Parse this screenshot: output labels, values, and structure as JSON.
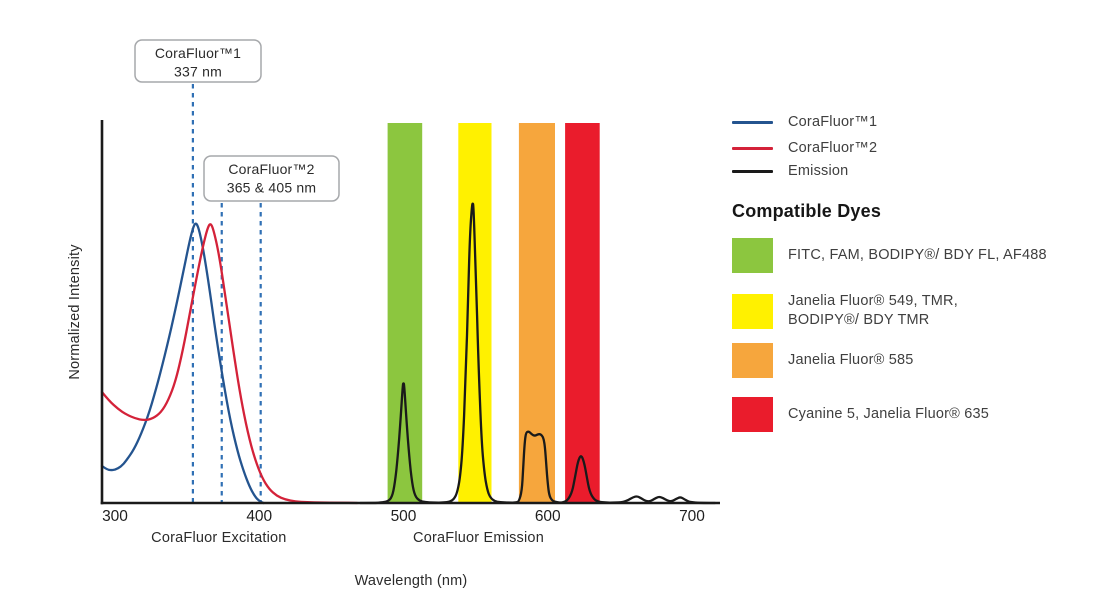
{
  "chart_data": {
    "type": "line",
    "title": "",
    "xlabel": "Wavelength (nm)",
    "ylabel": "Normalized Intensity",
    "xlim": [
      291,
      719
    ],
    "ylim": [
      0,
      1
    ],
    "grid": false,
    "legend_position": "right",
    "x_ticks": [
      300,
      400,
      500,
      600,
      700
    ],
    "axis_sublabels": [
      {
        "text": "CoraFluor Excitation",
        "x_nm": 372
      },
      {
        "text": "CoraFluor Emission",
        "x_nm": 552
      }
    ],
    "annotations": [
      {
        "lines": [
          "CoraFluor™1",
          "337 nm"
        ]
      },
      {
        "lines": [
          "CoraFluor™2",
          "365 & 405 nm"
        ]
      }
    ],
    "excitation_markers_nm": [
      354,
      374,
      401
    ],
    "marker_color": "#3070B5",
    "bands": [
      {
        "id": "green",
        "nm": [
          489,
          513
        ],
        "color": "#8CC63F"
      },
      {
        "id": "yellow",
        "nm": [
          538,
          561
        ],
        "color": "#FFF100"
      },
      {
        "id": "orange",
        "nm": [
          580,
          605
        ],
        "color": "#F6A63D"
      },
      {
        "id": "red",
        "nm": [
          612,
          636
        ],
        "color": "#EA1C2C"
      }
    ],
    "series": [
      {
        "name": "CoraFluor™1",
        "color": "#24548F",
        "points": [
          [
            291,
            0.097
          ],
          [
            294,
            0.089
          ],
          [
            297,
            0.086
          ],
          [
            300,
            0.087
          ],
          [
            304,
            0.095
          ],
          [
            308,
            0.112
          ],
          [
            313,
            0.14
          ],
          [
            318,
            0.18
          ],
          [
            324,
            0.24
          ],
          [
            330,
            0.32
          ],
          [
            336,
            0.41
          ],
          [
            342,
            0.51
          ],
          [
            347,
            0.6
          ],
          [
            351,
            0.675
          ],
          [
            354,
            0.722
          ],
          [
            356,
            0.737
          ],
          [
            358,
            0.722
          ],
          [
            361,
            0.67
          ],
          [
            365,
            0.575
          ],
          [
            370,
            0.44
          ],
          [
            375,
            0.32
          ],
          [
            380,
            0.215
          ],
          [
            385,
            0.135
          ],
          [
            389,
            0.085
          ],
          [
            393,
            0.045
          ],
          [
            397,
            0.017
          ],
          [
            400,
            0.005
          ],
          [
            403,
            0
          ]
        ]
      },
      {
        "name": "CoraFluor™2",
        "color": "#D42239",
        "points": [
          [
            291,
            0.291
          ],
          [
            296,
            0.268
          ],
          [
            302,
            0.247
          ],
          [
            308,
            0.232
          ],
          [
            314,
            0.222
          ],
          [
            320,
            0.217
          ],
          [
            326,
            0.221
          ],
          [
            332,
            0.238
          ],
          [
            337,
            0.27
          ],
          [
            342,
            0.32
          ],
          [
            347,
            0.4
          ],
          [
            352,
            0.5
          ],
          [
            357,
            0.6
          ],
          [
            361,
            0.675
          ],
          [
            364,
            0.72
          ],
          [
            366,
            0.735
          ],
          [
            368,
            0.722
          ],
          [
            372,
            0.655
          ],
          [
            377,
            0.53
          ],
          [
            382,
            0.4
          ],
          [
            387,
            0.28
          ],
          [
            392,
            0.185
          ],
          [
            397,
            0.115
          ],
          [
            402,
            0.066
          ],
          [
            407,
            0.036
          ],
          [
            412,
            0.019
          ],
          [
            418,
            0.009
          ],
          [
            425,
            0.004
          ],
          [
            433,
            0.002
          ],
          [
            443,
            0.001
          ],
          [
            455,
            0.001
          ],
          [
            468,
            0
          ]
        ]
      },
      {
        "name": "Emission",
        "color": "#1A1A1A",
        "points": [
          [
            470,
            0
          ],
          [
            480,
            0
          ],
          [
            484,
            0.001
          ],
          [
            489,
            0.004
          ],
          [
            492,
            0.015
          ],
          [
            494,
            0.05
          ],
          [
            496,
            0.12
          ],
          [
            498,
            0.22
          ],
          [
            499.5,
            0.31
          ],
          [
            500,
            0.315
          ],
          [
            500.5,
            0.31
          ],
          [
            502,
            0.22
          ],
          [
            504,
            0.12
          ],
          [
            506,
            0.05
          ],
          [
            508,
            0.018
          ],
          [
            511,
            0.006
          ],
          [
            515,
            0.002
          ],
          [
            521,
            0.001
          ],
          [
            528,
            0.001
          ],
          [
            532,
            0.003
          ],
          [
            535,
            0.01
          ],
          [
            537,
            0.025
          ],
          [
            539,
            0.06
          ],
          [
            541,
            0.14
          ],
          [
            543,
            0.32
          ],
          [
            545,
            0.56
          ],
          [
            546,
            0.7
          ],
          [
            547.5,
            0.782
          ],
          [
            548,
            0.787
          ],
          [
            548.5,
            0.782
          ],
          [
            550,
            0.62
          ],
          [
            552,
            0.36
          ],
          [
            554,
            0.17
          ],
          [
            556,
            0.08
          ],
          [
            558,
            0.035
          ],
          [
            560,
            0.015
          ],
          [
            563,
            0.005
          ],
          [
            567,
            0.002
          ],
          [
            573,
            0.001
          ],
          [
            578,
            0.001
          ],
          [
            580,
            0.004
          ],
          [
            582,
            0.03
          ],
          [
            583,
            0.09
          ],
          [
            584,
            0.16
          ],
          [
            585,
            0.186
          ],
          [
            587,
            0.188
          ],
          [
            589,
            0.18
          ],
          [
            591,
            0.176
          ],
          [
            593,
            0.18
          ],
          [
            595,
            0.181
          ],
          [
            597,
            0.172
          ],
          [
            598,
            0.15
          ],
          [
            599,
            0.1
          ],
          [
            600,
            0.05
          ],
          [
            601,
            0.02
          ],
          [
            603,
            0.006
          ],
          [
            606,
            0.002
          ],
          [
            609,
            0.001
          ],
          [
            611,
            0.002
          ],
          [
            614,
            0.008
          ],
          [
            617,
            0.03
          ],
          [
            619,
            0.07
          ],
          [
            621,
            0.11
          ],
          [
            623,
            0.127
          ],
          [
            625,
            0.11
          ],
          [
            627,
            0.07
          ],
          [
            629,
            0.03
          ],
          [
            632,
            0.01
          ],
          [
            635,
            0.003
          ],
          [
            640,
            0.001
          ],
          [
            646,
            0.001
          ],
          [
            652,
            0.002
          ],
          [
            656,
            0.008
          ],
          [
            659,
            0.015
          ],
          [
            662,
            0.018
          ],
          [
            665,
            0.012
          ],
          [
            668,
            0.005
          ],
          [
            671,
            0.004
          ],
          [
            674,
            0.011
          ],
          [
            677,
            0.017
          ],
          [
            680,
            0.013
          ],
          [
            683,
            0.006
          ],
          [
            686,
            0.004
          ],
          [
            689,
            0.011
          ],
          [
            692,
            0.016
          ],
          [
            695,
            0.009
          ],
          [
            698,
            0.003
          ],
          [
            702,
            0.001
          ],
          [
            708,
            0
          ],
          [
            716,
            0
          ]
        ]
      }
    ]
  },
  "legend": {
    "series": [
      {
        "label": "CoraFluor™1",
        "color": "#24548F"
      },
      {
        "label": "CoraFluor™2",
        "color": "#D42239"
      },
      {
        "label": "Emission",
        "color": "#1A1A1A"
      }
    ],
    "heading": "Compatible Dyes",
    "dyes": [
      {
        "color": "#8CC63F",
        "lines": [
          "FITC, FAM, BODIPY®/ BDY FL, AF488"
        ]
      },
      {
        "color": "#FFF100",
        "lines": [
          "Janelia Fluor® 549, TMR,",
          "BODIPY®/ BDY TMR"
        ]
      },
      {
        "color": "#F6A63D",
        "lines": [
          "Janelia Fluor® 585"
        ]
      },
      {
        "color": "#EA1C2C",
        "lines": [
          "Cyanine 5, Janelia Fluor® 635"
        ]
      }
    ]
  }
}
